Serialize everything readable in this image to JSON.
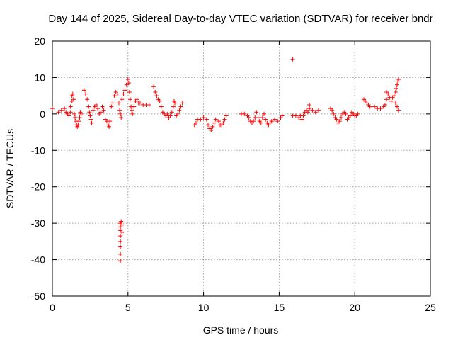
{
  "chart_data": {
    "type": "scatter",
    "title": "Day 144 of 2025, Sidereal Day-to-day VTEC variation (SDTVAR) for receiver bndr",
    "xlabel": "GPS time / hours",
    "ylabel": "SDTVAR / TECUs",
    "xlim": [
      0,
      25
    ],
    "ylim": [
      -50,
      20
    ],
    "xticks": [
      0,
      5,
      10,
      15,
      20,
      25
    ],
    "yticks": [
      20,
      10,
      0,
      -10,
      -20,
      -30,
      -40,
      -50
    ],
    "grid": true,
    "marker": "+",
    "series": [
      {
        "name": "SDTVAR",
        "color": "#ff0000",
        "points": [
          [
            0.0,
            1.5
          ],
          [
            0.4,
            0.5
          ],
          [
            0.6,
            1.0
          ],
          [
            0.8,
            1.5
          ],
          [
            0.9,
            0.5
          ],
          [
            1.0,
            0.0
          ],
          [
            1.1,
            -0.5
          ],
          [
            1.2,
            0.5
          ],
          [
            1.2,
            2.0
          ],
          [
            1.3,
            3.5
          ],
          [
            1.3,
            5.0
          ],
          [
            1.35,
            5.5
          ],
          [
            1.4,
            4.0
          ],
          [
            1.45,
            0.0
          ],
          [
            1.5,
            -1.0
          ],
          [
            1.55,
            -2.0
          ],
          [
            1.6,
            -3.0
          ],
          [
            1.65,
            -3.5
          ],
          [
            1.7,
            -3.0
          ],
          [
            1.75,
            -2.0
          ],
          [
            1.8,
            -1.0
          ],
          [
            1.85,
            0.5
          ],
          [
            1.9,
            0.0
          ],
          [
            2.1,
            6.5
          ],
          [
            2.2,
            5.5
          ],
          [
            2.3,
            4.0
          ],
          [
            2.4,
            2.0
          ],
          [
            2.45,
            0.5
          ],
          [
            2.5,
            -0.5
          ],
          [
            2.55,
            -1.5
          ],
          [
            2.6,
            -2.5
          ],
          [
            2.7,
            1.0
          ],
          [
            2.8,
            2.0
          ],
          [
            2.9,
            2.5
          ],
          [
            3.0,
            1.5
          ],
          [
            3.1,
            0.0
          ],
          [
            3.2,
            0.5
          ],
          [
            3.3,
            2.0
          ],
          [
            3.4,
            1.0
          ],
          [
            3.5,
            -1.5
          ],
          [
            3.6,
            -2.0
          ],
          [
            3.7,
            -3.0
          ],
          [
            3.75,
            -3.5
          ],
          [
            3.8,
            -2.0
          ],
          [
            3.9,
            2.0
          ],
          [
            4.0,
            3.0
          ],
          [
            4.1,
            5.0
          ],
          [
            4.2,
            6.0
          ],
          [
            4.3,
            5.5
          ],
          [
            4.4,
            3.0
          ],
          [
            4.45,
            1.0
          ],
          [
            4.5,
            0.0
          ],
          [
            4.55,
            -1.0
          ],
          [
            4.5,
            -30.0
          ],
          [
            4.5,
            -31.0
          ],
          [
            4.5,
            -32.0
          ],
          [
            4.5,
            -33.5
          ],
          [
            4.5,
            -35.0
          ],
          [
            4.5,
            -36.5
          ],
          [
            4.5,
            -38.5
          ],
          [
            4.5,
            -40.3
          ],
          [
            4.55,
            -29.5
          ],
          [
            4.6,
            -30.5
          ],
          [
            4.6,
            -32.5
          ],
          [
            4.6,
            4.0
          ],
          [
            4.7,
            5.5
          ],
          [
            4.8,
            6.5
          ],
          [
            4.9,
            8.0
          ],
          [
            5.0,
            9.5
          ],
          [
            5.05,
            8.5
          ],
          [
            5.1,
            6.0
          ],
          [
            5.15,
            4.0
          ],
          [
            5.2,
            2.0
          ],
          [
            5.25,
            1.0
          ],
          [
            5.3,
            0.0
          ],
          [
            5.4,
            2.0
          ],
          [
            5.5,
            3.5
          ],
          [
            5.6,
            4.0
          ],
          [
            5.7,
            3.0
          ],
          [
            5.8,
            3.0
          ],
          [
            6.0,
            2.5
          ],
          [
            6.2,
            2.5
          ],
          [
            6.4,
            2.5
          ],
          [
            6.7,
            7.5
          ],
          [
            6.8,
            6.0
          ],
          [
            6.9,
            5.0
          ],
          [
            7.0,
            4.0
          ],
          [
            7.1,
            3.5
          ],
          [
            7.2,
            2.0
          ],
          [
            7.3,
            0.5
          ],
          [
            7.4,
            0.0
          ],
          [
            7.5,
            -0.5
          ],
          [
            7.6,
            0.0
          ],
          [
            7.7,
            -1.0
          ],
          [
            7.8,
            -0.5
          ],
          [
            7.9,
            0.5
          ],
          [
            8.0,
            2.0
          ],
          [
            8.05,
            3.5
          ],
          [
            8.1,
            3.0
          ],
          [
            8.2,
            -0.5
          ],
          [
            8.3,
            0.0
          ],
          [
            8.4,
            1.0
          ],
          [
            8.5,
            2.0
          ],
          [
            8.6,
            3.0
          ],
          [
            9.4,
            -3.0
          ],
          [
            9.5,
            -2.5
          ],
          [
            9.6,
            -1.5
          ],
          [
            9.8,
            -1.5
          ],
          [
            10.0,
            -1.0
          ],
          [
            10.2,
            -1.5
          ],
          [
            10.3,
            -3.0
          ],
          [
            10.4,
            -4.0
          ],
          [
            10.5,
            -4.5
          ],
          [
            10.6,
            -3.5
          ],
          [
            10.7,
            -2.5
          ],
          [
            10.8,
            -1.5
          ],
          [
            11.0,
            -2.0
          ],
          [
            11.1,
            -3.0
          ],
          [
            11.2,
            -3.0
          ],
          [
            11.3,
            -2.5
          ],
          [
            11.4,
            -1.5
          ],
          [
            11.5,
            -0.5
          ],
          [
            12.5,
            0.0
          ],
          [
            12.7,
            0.0
          ],
          [
            12.9,
            -0.5
          ],
          [
            13.0,
            -1.0
          ],
          [
            13.1,
            -2.0
          ],
          [
            13.2,
            -2.5
          ],
          [
            13.3,
            -2.0
          ],
          [
            13.4,
            -1.0
          ],
          [
            13.5,
            0.5
          ],
          [
            13.6,
            -1.0
          ],
          [
            13.7,
            -2.0
          ],
          [
            13.8,
            -2.5
          ],
          [
            13.9,
            -1.0
          ],
          [
            14.0,
            0.0
          ],
          [
            14.1,
            -1.5
          ],
          [
            14.2,
            -2.5
          ],
          [
            14.3,
            -3.0
          ],
          [
            14.4,
            -2.5
          ],
          [
            14.5,
            -2.0
          ],
          [
            14.7,
            -1.5
          ],
          [
            14.9,
            -2.0
          ],
          [
            15.1,
            -1.0
          ],
          [
            15.2,
            -0.5
          ],
          [
            15.9,
            15.0
          ],
          [
            15.9,
            -0.5
          ],
          [
            16.1,
            -0.5
          ],
          [
            16.3,
            -1.0
          ],
          [
            16.4,
            -0.5
          ],
          [
            16.5,
            -1.5
          ],
          [
            16.6,
            -0.5
          ],
          [
            16.7,
            0.5
          ],
          [
            16.8,
            1.0
          ],
          [
            16.9,
            0.5
          ],
          [
            17.0,
            1.5
          ],
          [
            17.0,
            2.5
          ],
          [
            17.2,
            1.0
          ],
          [
            17.4,
            0.5
          ],
          [
            17.6,
            1.0
          ],
          [
            18.4,
            1.5
          ],
          [
            18.5,
            1.0
          ],
          [
            18.6,
            0.0
          ],
          [
            18.7,
            -1.0
          ],
          [
            18.8,
            -1.5
          ],
          [
            18.9,
            -2.5
          ],
          [
            19.0,
            -2.0
          ],
          [
            19.1,
            -1.0
          ],
          [
            19.2,
            0.0
          ],
          [
            19.3,
            0.5
          ],
          [
            19.4,
            0.0
          ],
          [
            19.5,
            -1.5
          ],
          [
            19.6,
            -1.0
          ],
          [
            19.7,
            -0.5
          ],
          [
            19.8,
            0.5
          ],
          [
            19.9,
            0.0
          ],
          [
            20.0,
            -0.5
          ],
          [
            20.1,
            -0.5
          ],
          [
            20.2,
            0.0
          ],
          [
            20.6,
            4.0
          ],
          [
            20.7,
            3.5
          ],
          [
            20.8,
            3.0
          ],
          [
            20.9,
            2.5
          ],
          [
            21.0,
            2.0
          ],
          [
            21.3,
            2.0
          ],
          [
            21.5,
            1.5
          ],
          [
            21.7,
            1.5
          ],
          [
            21.9,
            2.0
          ],
          [
            22.0,
            2.5
          ],
          [
            22.1,
            4.0
          ],
          [
            22.1,
            6.0
          ],
          [
            22.2,
            5.5
          ],
          [
            22.3,
            4.5
          ],
          [
            22.4,
            3.5
          ],
          [
            22.5,
            4.5
          ],
          [
            22.6,
            5.0
          ],
          [
            22.7,
            6.0
          ],
          [
            22.75,
            7.0
          ],
          [
            22.8,
            8.0
          ],
          [
            22.85,
            9.0
          ],
          [
            22.9,
            9.5
          ],
          [
            22.7,
            3.0
          ],
          [
            22.8,
            2.0
          ],
          [
            22.9,
            1.0
          ]
        ]
      }
    ]
  }
}
